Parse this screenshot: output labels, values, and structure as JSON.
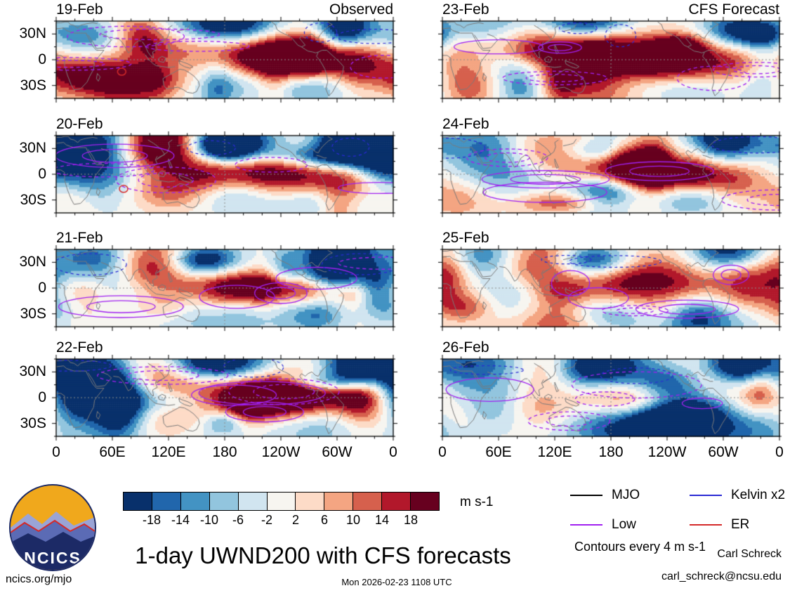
{
  "chart_data": {
    "type": "heatmap",
    "title": "1-day UWND200 with CFS forecasts",
    "description": "Eight longitude-latitude maps of 200-hPa zonal wind anomalies: left column observed 19-22 Feb, right column CFS forecast 23-26 Feb, with wave contours overlaid",
    "panels": [
      {
        "date": "19-Feb",
        "tag": "Observed"
      },
      {
        "date": "20-Feb",
        "tag": ""
      },
      {
        "date": "21-Feb",
        "tag": ""
      },
      {
        "date": "22-Feb",
        "tag": ""
      },
      {
        "date": "23-Feb",
        "tag": "CFS Forecast"
      },
      {
        "date": "24-Feb",
        "tag": ""
      },
      {
        "date": "25-Feb",
        "tag": ""
      },
      {
        "date": "26-Feb",
        "tag": ""
      }
    ],
    "x_axis": {
      "ticks": [
        "0",
        "60E",
        "120E",
        "180",
        "120W",
        "60W",
        "0"
      ]
    },
    "y_axis": {
      "ticks": [
        "30N",
        "0",
        "30S"
      ]
    },
    "colorbar": {
      "units": "m s-1",
      "ticks": [
        -18,
        -14,
        -10,
        -6,
        -2,
        2,
        6,
        10,
        14,
        18
      ],
      "colors": [
        "#08306b",
        "#2166ac",
        "#4393c3",
        "#92c5de",
        "#d1e5f0",
        "#f7f5f0",
        "#fddbc7",
        "#f4a582",
        "#d6604d",
        "#b2182b",
        "#67001f"
      ]
    },
    "legend": [
      {
        "label": "MJO",
        "color": "#000000"
      },
      {
        "label": "Low",
        "color": "#a020f0"
      },
      {
        "label": "Kelvin x2",
        "color": "#2a2ad4"
      },
      {
        "label": "ER",
        "color": "#d42a2a"
      }
    ],
    "contour_note": "Contours every 4 m s-1"
  },
  "branding": {
    "logo_text": "NCICS"
  },
  "footer": {
    "site": "ncics.org/mjo",
    "timestamp": "Mon 2026-02-23 1108 UTC",
    "author": "Carl Schreck",
    "email": "carl_schreck@ncsu.edu"
  }
}
